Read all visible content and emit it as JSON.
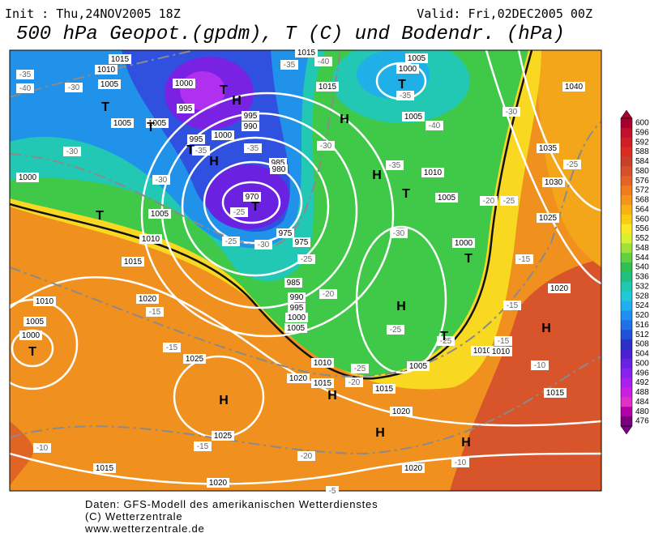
{
  "header": {
    "init": "Init : Thu,24NOV2005 18Z",
    "valid": "Valid: Fri,02DEC2005 00Z",
    "title": "500 hPa Geopot.(gpdm), T (C) und Bodendr. (hPa)"
  },
  "colorbar": {
    "levels": [
      600,
      596,
      592,
      588,
      584,
      580,
      576,
      572,
      568,
      564,
      560,
      556,
      552,
      548,
      544,
      540,
      536,
      532,
      528,
      524,
      520,
      516,
      512,
      508,
      504,
      500,
      496,
      492,
      488,
      484,
      480,
      476
    ],
    "colors": [
      "#a8002e",
      "#c0102c",
      "#d01e26",
      "#dc2c22",
      "#c8402a",
      "#d8502a",
      "#e46424",
      "#f07c1c",
      "#f4941a",
      "#f8b014",
      "#f8cc10",
      "#f8e828",
      "#d8f030",
      "#a0e038",
      "#60d040",
      "#30c050",
      "#20c080",
      "#20c8b0",
      "#20c8d8",
      "#20b0f0",
      "#2090f0",
      "#2070e8",
      "#2050d8",
      "#2c30c8",
      "#4a20d0",
      "#6a20e0",
      "#8a20ec",
      "#a820f0",
      "#c820e0",
      "#e030c8",
      "#b000a8",
      "#7a0080"
    ]
  },
  "map": {
    "isobars": [
      "1015",
      "1010",
      "1005",
      "1000",
      "995",
      "990",
      "995",
      "1000",
      "995",
      "985",
      "980",
      "970",
      "975",
      "975",
      "1005",
      "1010",
      "1015",
      "1020",
      "1005",
      "1000",
      "1010",
      "1025",
      "1025",
      "1015",
      "1020",
      "1015",
      "1005",
      "1000",
      "1005",
      "1010",
      "1005",
      "1000",
      "985",
      "990",
      "995",
      "1000",
      "1005",
      "1010",
      "1015",
      "1020",
      "1015",
      "1020",
      "1020",
      "1005",
      "1010",
      "1010",
      "1015",
      "1020",
      "1025",
      "1030",
      "1035",
      "1040",
      "1015",
      "1005",
      "1005",
      "1000"
    ],
    "temperatures": [
      "-35",
      "-40",
      "-30",
      "-30",
      "-30",
      "-35",
      "-35",
      "-25",
      "-25",
      "-30",
      "-35",
      "-40",
      "-30",
      "-35",
      "-40",
      "-35",
      "-30",
      "-25",
      "-20",
      "-25",
      "-15",
      "-15",
      "-15",
      "-25",
      "-20",
      "-30",
      "-25",
      "-25",
      "-25",
      "-20",
      "-15",
      "-15",
      "-15",
      "-10",
      "-20",
      "-10",
      "-10",
      "-5"
    ],
    "centers": [
      "T",
      "T",
      "T",
      "H",
      "T",
      "H",
      "T",
      "T",
      "T",
      "H",
      "H",
      "T",
      "T",
      "H",
      "T",
      "H",
      "H",
      "H",
      "H",
      "H",
      "T"
    ]
  },
  "footer": [
    "Daten: GFS-Modell des amerikanischen Wetterdienstes",
    "(C) Wetterzentrale",
    "www.wetterzentrale.de"
  ]
}
